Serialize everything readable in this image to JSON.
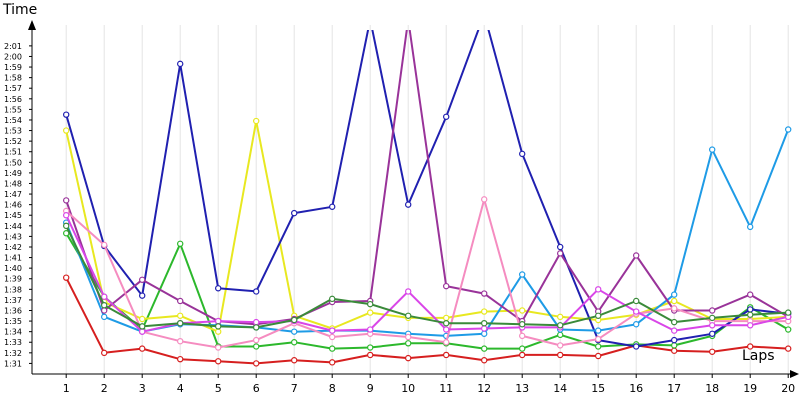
{
  "chart_data": {
    "type": "line",
    "xlabel": "Laps",
    "ylabel": "Time",
    "x": [
      1,
      2,
      3,
      4,
      5,
      6,
      7,
      8,
      9,
      10,
      11,
      12,
      13,
      14,
      15,
      16,
      17,
      18,
      19,
      20
    ],
    "xlim": [
      0.1,
      20.1
    ],
    "ylim": [
      90,
      122.5
    ],
    "y_ticks": [
      {
        "v": 91,
        "label": "1:31"
      },
      {
        "v": 92,
        "label": "1:32"
      },
      {
        "v": 93,
        "label": "1:33"
      },
      {
        "v": 94,
        "label": "1:34"
      },
      {
        "v": 95,
        "label": "1:35"
      },
      {
        "v": 96,
        "label": "1:36"
      },
      {
        "v": 97,
        "label": "1:37"
      },
      {
        "v": 98,
        "label": "1:38"
      },
      {
        "v": 99,
        "label": "1:39"
      },
      {
        "v": 100,
        "label": "1:40"
      },
      {
        "v": 101,
        "label": "1:41"
      },
      {
        "v": 102,
        "label": "1:42"
      },
      {
        "v": 103,
        "label": "1:43"
      },
      {
        "v": 104,
        "label": "1:44"
      },
      {
        "v": 105,
        "label": "1:45"
      },
      {
        "v": 106,
        "label": "1:46"
      },
      {
        "v": 107,
        "label": "1:47"
      },
      {
        "v": 108,
        "label": "1:48"
      },
      {
        "v": 109,
        "label": "1:49"
      },
      {
        "v": 110,
        "label": "1:50"
      },
      {
        "v": 111,
        "label": "1:51"
      },
      {
        "v": 112,
        "label": "1:52"
      },
      {
        "v": 113,
        "label": "1:53"
      },
      {
        "v": 114,
        "label": "1:54"
      },
      {
        "v": 115,
        "label": "1:55"
      },
      {
        "v": 116,
        "label": "1:56"
      },
      {
        "v": 117,
        "label": "1:57"
      },
      {
        "v": 118,
        "label": "1:58"
      },
      {
        "v": 119,
        "label": "1:59"
      },
      {
        "v": 120,
        "label": "2:00"
      },
      {
        "v": 121,
        "label": "2:01"
      }
    ],
    "grid": {
      "vertical": true,
      "horizontal": false
    },
    "legend": "none",
    "series": [
      {
        "color": "#d61f1f",
        "values": [
          99.1,
          92.0,
          92.4,
          91.4,
          91.2,
          91.0,
          91.3,
          91.1,
          91.8,
          91.5,
          91.8,
          91.3,
          91.8,
          91.8,
          91.7,
          92.7,
          92.2,
          92.1,
          92.6,
          92.4
        ]
      },
      {
        "color": "#2cb82c",
        "values": [
          103.3,
          97.3,
          94.2,
          102.3,
          92.6,
          92.6,
          93.0,
          92.4,
          92.5,
          92.9,
          92.9,
          92.4,
          92.4,
          93.7,
          92.6,
          92.8,
          92.7,
          93.6,
          96.3,
          94.2
        ]
      },
      {
        "color": "#e8e820",
        "values": [
          113.0,
          96.8,
          95.2,
          95.5,
          94.0,
          113.9,
          95.5,
          94.3,
          95.8,
          95.3,
          95.3,
          95.9,
          96.0,
          95.4,
          95.1,
          95.6,
          96.9,
          95.2,
          95.2,
          95.4
        ]
      },
      {
        "color": "#2020b0",
        "values": [
          114.5,
          102.1,
          97.4,
          119.3,
          98.1,
          97.8,
          105.2,
          105.8,
          123.5,
          106.0,
          114.3,
          124.0,
          110.8,
          102.0,
          93.2,
          92.6,
          93.2,
          93.8,
          96.1,
          95.7
        ]
      },
      {
        "color": "#1e9be6",
        "values": [
          104.3,
          95.4,
          94.0,
          94.7,
          94.6,
          94.4,
          94.0,
          94.1,
          94.1,
          93.8,
          93.6,
          93.8,
          99.4,
          94.2,
          94.1,
          94.7,
          97.5,
          111.2,
          103.9,
          113.1
        ]
      },
      {
        "color": "#993399",
        "values": [
          106.4,
          96.0,
          98.9,
          96.9,
          95.0,
          94.7,
          95.2,
          96.8,
          96.9,
          123.5,
          98.3,
          97.6,
          95.0,
          101.4,
          95.9,
          101.2,
          96.0,
          96.0,
          97.5,
          95.4
        ]
      },
      {
        "color": "#f58cc0",
        "values": [
          105.4,
          102.2,
          94.0,
          93.1,
          92.5,
          93.2,
          94.8,
          93.5,
          93.8,
          93.5,
          93.0,
          106.5,
          93.6,
          92.7,
          93.3,
          95.7,
          96.2,
          95.0,
          95.0,
          95.0
        ]
      },
      {
        "color": "#d946e8",
        "values": [
          105.0,
          97.3,
          94.0,
          94.8,
          95.0,
          94.9,
          95.0,
          94.1,
          94.2,
          97.8,
          94.2,
          94.3,
          94.4,
          94.4,
          98.0,
          95.9,
          94.1,
          94.6,
          94.6,
          95.4
        ]
      },
      {
        "color": "#3a8a3a",
        "values": [
          104.0,
          96.5,
          94.5,
          94.8,
          94.5,
          94.4,
          95.1,
          97.1,
          96.6,
          95.5,
          94.8,
          94.8,
          94.7,
          94.6,
          95.5,
          96.9,
          94.9,
          95.3,
          95.6,
          95.8
        ]
      }
    ]
  }
}
